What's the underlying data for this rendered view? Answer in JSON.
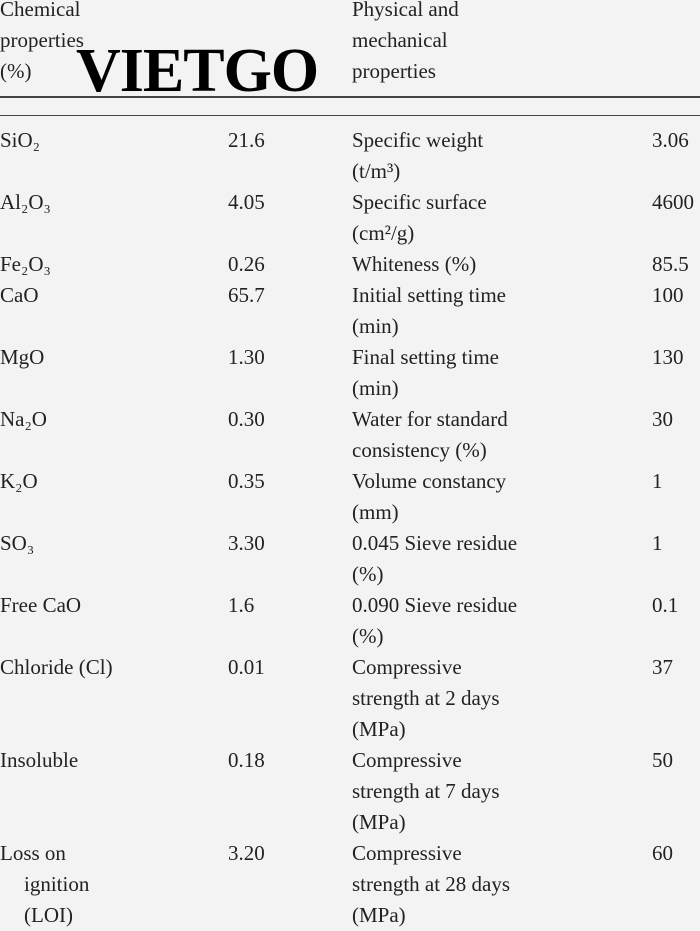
{
  "header": {
    "chemical": [
      "Chemical",
      "properties",
      "(%)"
    ],
    "physical": [
      "Physical and",
      "mechanical",
      "properties"
    ]
  },
  "watermark": "VIETGO",
  "rows": [
    {
      "chem": [
        "SiO₂"
      ],
      "chem_value": "21.6",
      "prop": [
        "Specific weight",
        "(t/m³)"
      ],
      "prop_value": "3.06"
    },
    {
      "chem": [
        "Al₂O₃"
      ],
      "chem_value": "4.05",
      "prop": [
        "Specific surface",
        "(cm²/g)"
      ],
      "prop_value": "4600"
    },
    {
      "chem": [
        "Fe₂O₃"
      ],
      "chem_value": "0.26",
      "prop": [
        "Whiteness (%)"
      ],
      "prop_value": "85.5"
    },
    {
      "chem": [
        "CaO"
      ],
      "chem_value": "65.7",
      "prop": [
        "Initial setting time",
        "(min)"
      ],
      "prop_value": "100"
    },
    {
      "chem": [
        "MgO"
      ],
      "chem_value": "1.30",
      "prop": [
        "Final setting time",
        "(min)"
      ],
      "prop_value": "130"
    },
    {
      "chem": [
        "Na₂O"
      ],
      "chem_value": "0.30",
      "prop": [
        "Water for standard",
        "consistency (%)"
      ],
      "prop_value": "30"
    },
    {
      "chem": [
        "K₂O"
      ],
      "chem_value": "0.35",
      "prop": [
        "Volume constancy",
        "(mm)"
      ],
      "prop_value": "1"
    },
    {
      "chem": [
        "SO₃"
      ],
      "chem_value": "3.30",
      "prop": [
        "0.045 Sieve residue",
        "(%)"
      ],
      "prop_value": "1"
    },
    {
      "chem": [
        "Free CaO"
      ],
      "chem_value": "1.6",
      "prop": [
        "0.090 Sieve residue",
        "(%)"
      ],
      "prop_value": "0.1"
    },
    {
      "chem": [
        "Chloride (Cl)"
      ],
      "chem_value": "0.01",
      "prop": [
        "Compressive",
        "strength at 2 days",
        "(MPa)"
      ],
      "prop_value": "37"
    },
    {
      "chem": [
        "Insoluble"
      ],
      "chem_value": "0.18",
      "prop": [
        "Compressive",
        "strength at 7 days",
        "(MPa)"
      ],
      "prop_value": "50"
    },
    {
      "chem": [
        "Loss on",
        "ignition",
        "(LOI)"
      ],
      "chem_value": "3.20",
      "prop": [
        "Compressive",
        "strength at 28 days",
        "(MPa)"
      ],
      "prop_value": "60"
    }
  ]
}
